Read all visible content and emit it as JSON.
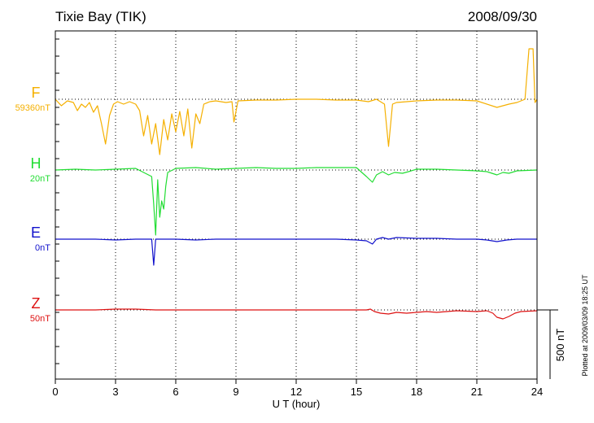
{
  "chart_data": {
    "type": "line",
    "title": "Tixie Bay (TIK)",
    "date": "2008/09/30",
    "xlabel": "U T (hour)",
    "xlim": [
      0,
      24
    ],
    "xticks": [
      0,
      3,
      6,
      9,
      12,
      15,
      18,
      21,
      24
    ],
    "scale_bar_label": "500 nT",
    "plotted_note": "Plotted at 2009/03/09 18:25 UT",
    "grid": "dotted vertical at every 3 hours",
    "series": [
      {
        "name": "F",
        "baseline_label": "59360nT",
        "color": "#f5b000",
        "points": [
          [
            0,
            0
          ],
          [
            0.3,
            -8
          ],
          [
            0.6,
            -2
          ],
          [
            0.9,
            -4
          ],
          [
            1.1,
            -14
          ],
          [
            1.3,
            -6
          ],
          [
            1.5,
            -10
          ],
          [
            1.7,
            -4
          ],
          [
            1.9,
            -16
          ],
          [
            2.1,
            -8
          ],
          [
            2.3,
            -30
          ],
          [
            2.5,
            -55
          ],
          [
            2.7,
            -20
          ],
          [
            2.9,
            -6
          ],
          [
            3.1,
            -3
          ],
          [
            3.4,
            -6
          ],
          [
            3.7,
            -3
          ],
          [
            4.0,
            -6
          ],
          [
            4.2,
            -14
          ],
          [
            4.4,
            -45
          ],
          [
            4.6,
            -20
          ],
          [
            4.8,
            -55
          ],
          [
            5.0,
            -30
          ],
          [
            5.2,
            -68
          ],
          [
            5.4,
            -25
          ],
          [
            5.6,
            -50
          ],
          [
            5.8,
            -18
          ],
          [
            6.0,
            -40
          ],
          [
            6.2,
            -15
          ],
          [
            6.4,
            -45
          ],
          [
            6.6,
            -12
          ],
          [
            6.8,
            -60
          ],
          [
            7.0,
            -18
          ],
          [
            7.2,
            -30
          ],
          [
            7.4,
            -6
          ],
          [
            7.7,
            -3
          ],
          [
            8.0,
            -2
          ],
          [
            8.5,
            -4
          ],
          [
            8.8,
            -3
          ],
          [
            8.9,
            -28
          ],
          [
            9.1,
            -2
          ],
          [
            10,
            -1
          ],
          [
            11,
            -1
          ],
          [
            12,
            0
          ],
          [
            13,
            0
          ],
          [
            14,
            -1
          ],
          [
            15,
            -1
          ],
          [
            15.6,
            -3
          ],
          [
            16.0,
            0
          ],
          [
            16.4,
            -6
          ],
          [
            16.6,
            -58
          ],
          [
            16.8,
            -6
          ],
          [
            17.0,
            -4
          ],
          [
            18,
            -2
          ],
          [
            19,
            -1
          ],
          [
            20,
            -1
          ],
          [
            21,
            -2
          ],
          [
            22.0,
            -10
          ],
          [
            22.6,
            -6
          ],
          [
            23.0,
            -4
          ],
          [
            23.4,
            0
          ],
          [
            23.6,
            62
          ],
          [
            23.8,
            62
          ],
          [
            23.9,
            -4
          ],
          [
            24,
            0
          ]
        ]
      },
      {
        "name": "H",
        "baseline_label": "20nT",
        "color": "#22dd33",
        "points": [
          [
            0,
            0
          ],
          [
            1,
            1
          ],
          [
            2,
            0
          ],
          [
            3,
            1
          ],
          [
            4,
            2
          ],
          [
            4.8,
            -8
          ],
          [
            4.9,
            -42
          ],
          [
            5.0,
            -80
          ],
          [
            5.1,
            -12
          ],
          [
            5.2,
            -58
          ],
          [
            5.3,
            -38
          ],
          [
            5.4,
            -48
          ],
          [
            5.5,
            -20
          ],
          [
            5.6,
            -3
          ],
          [
            6,
            2
          ],
          [
            7,
            3
          ],
          [
            8,
            1
          ],
          [
            9,
            2
          ],
          [
            10,
            3
          ],
          [
            11,
            2
          ],
          [
            12,
            2
          ],
          [
            13,
            3
          ],
          [
            14,
            3
          ],
          [
            15,
            3
          ],
          [
            15.5,
            -8
          ],
          [
            15.8,
            -15
          ],
          [
            16.0,
            -6
          ],
          [
            16.3,
            -2
          ],
          [
            16.6,
            -6
          ],
          [
            16.9,
            -3
          ],
          [
            17.3,
            -4
          ],
          [
            17.6,
            -2
          ],
          [
            18,
            1
          ],
          [
            19,
            1
          ],
          [
            20,
            0
          ],
          [
            21,
            -1
          ],
          [
            21.5,
            -2
          ],
          [
            22.0,
            -6
          ],
          [
            22.3,
            -3
          ],
          [
            22.6,
            -4
          ],
          [
            23,
            -1
          ],
          [
            24,
            0
          ]
        ]
      },
      {
        "name": "E",
        "baseline_label": "0nT",
        "color": "#1111cc",
        "points": [
          [
            0,
            0
          ],
          [
            1,
            0
          ],
          [
            2,
            0
          ],
          [
            3,
            -1
          ],
          [
            4,
            0
          ],
          [
            4.8,
            0
          ],
          [
            4.9,
            -32
          ],
          [
            5.0,
            0
          ],
          [
            6,
            0
          ],
          [
            7,
            -1
          ],
          [
            8,
            0
          ],
          [
            9,
            0
          ],
          [
            10,
            0
          ],
          [
            11,
            0
          ],
          [
            12,
            0
          ],
          [
            13,
            0
          ],
          [
            14,
            0
          ],
          [
            15,
            -1
          ],
          [
            15.5,
            -2
          ],
          [
            15.8,
            -6
          ],
          [
            16.0,
            0
          ],
          [
            16.3,
            2
          ],
          [
            16.6,
            0
          ],
          [
            17,
            2
          ],
          [
            18,
            1
          ],
          [
            19,
            1
          ],
          [
            20,
            0
          ],
          [
            21,
            0
          ],
          [
            21.5,
            -1
          ],
          [
            22.0,
            -3
          ],
          [
            22.5,
            -1
          ],
          [
            23,
            0
          ],
          [
            24,
            0
          ]
        ]
      },
      {
        "name": "Z",
        "baseline_label": "50nT",
        "color": "#dd1111",
        "points": [
          [
            0,
            0
          ],
          [
            1,
            0
          ],
          [
            2,
            0
          ],
          [
            3,
            1
          ],
          [
            4,
            1
          ],
          [
            5,
            0
          ],
          [
            6,
            0
          ],
          [
            7,
            0
          ],
          [
            8,
            0
          ],
          [
            9,
            0
          ],
          [
            10,
            0
          ],
          [
            11,
            0
          ],
          [
            12,
            0
          ],
          [
            13,
            0
          ],
          [
            14,
            0
          ],
          [
            15,
            0
          ],
          [
            15.5,
            0
          ],
          [
            15.7,
            1
          ],
          [
            15.9,
            -2
          ],
          [
            16.2,
            -4
          ],
          [
            16.6,
            -5
          ],
          [
            17,
            -3
          ],
          [
            17.5,
            -4
          ],
          [
            18,
            -3
          ],
          [
            18.5,
            -2
          ],
          [
            19,
            -3
          ],
          [
            20,
            -1
          ],
          [
            21,
            -2
          ],
          [
            21.5,
            -1
          ],
          [
            21.8,
            -4
          ],
          [
            22.0,
            -9
          ],
          [
            22.3,
            -11
          ],
          [
            22.6,
            -8
          ],
          [
            22.9,
            -4
          ],
          [
            23.2,
            -2
          ],
          [
            24,
            -1
          ]
        ]
      }
    ]
  }
}
